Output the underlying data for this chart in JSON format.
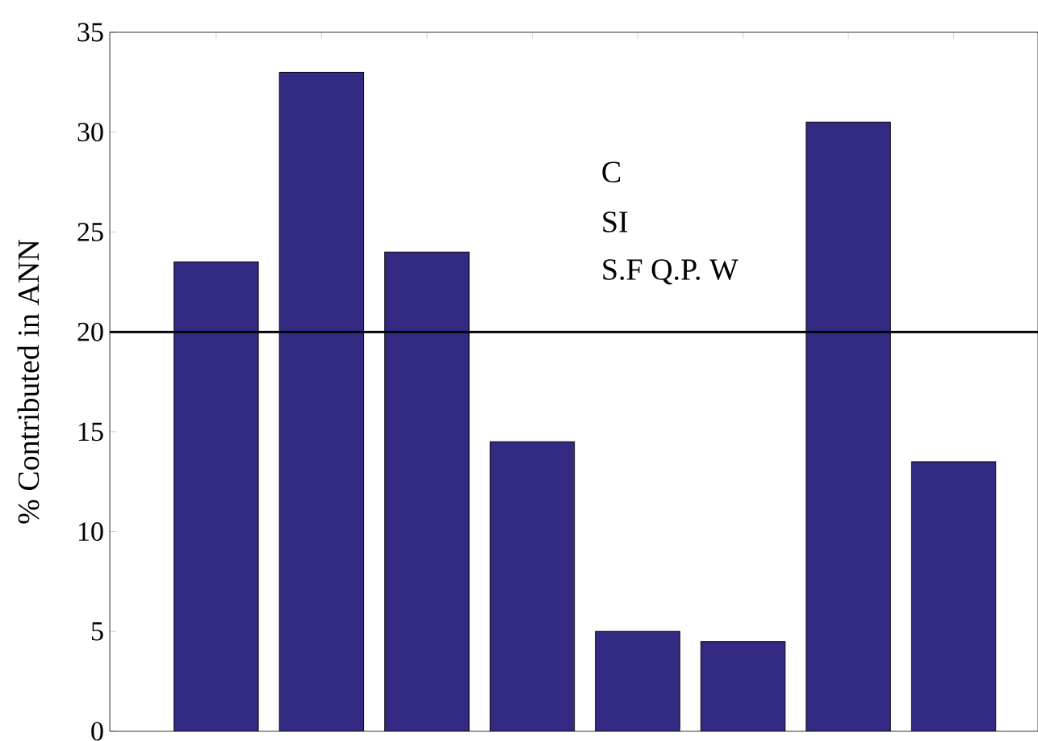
{
  "chart_data": {
    "type": "bar",
    "ylabel": "% Contributed in ANN",
    "categories": [
      null,
      null,
      null,
      null,
      null,
      null,
      null,
      null
    ],
    "values": [
      23.5,
      33,
      24,
      14.5,
      5,
      4.5,
      30.5,
      13.5
    ],
    "color": "#332a84",
    "ylim": [
      0,
      35
    ],
    "yticks": [
      0,
      5,
      10,
      15,
      20,
      25,
      30,
      35
    ],
    "ref_lines": [
      {
        "axis": "y",
        "value": 20,
        "color": "#000000"
      }
    ],
    "annotations": [
      "C",
      "SI",
      "S.F Q.P. W"
    ],
    "grid": false
  }
}
